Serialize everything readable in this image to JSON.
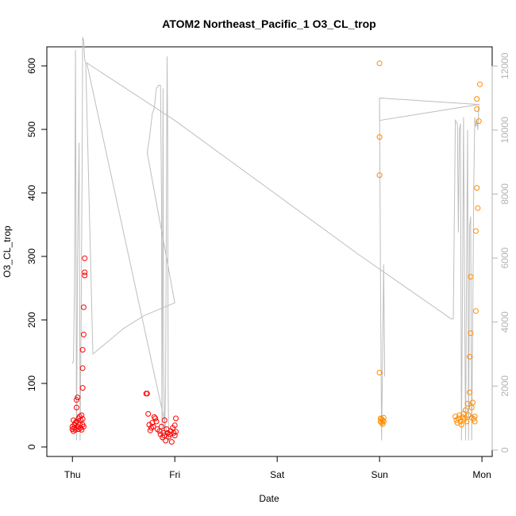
{
  "chart_data": {
    "type": "scatter",
    "title": "ATOM2 Northeast_Pacific_1 O3_CL_trop",
    "xlabel": "Date",
    "ylabel": "O3_CL_trop",
    "x_ticks": [
      "Thu",
      "Fri",
      "Sat",
      "Sun",
      "Mon"
    ],
    "x_tick_values": [
      0,
      1,
      2,
      3,
      4
    ],
    "xlim": [
      -0.25,
      4.1
    ],
    "ylim": [
      -15,
      630
    ],
    "y_ticks": [
      0,
      100,
      200,
      300,
      400,
      500,
      600
    ],
    "y2_ticks": [
      0,
      2000,
      4000,
      6000,
      8000,
      10000,
      12000
    ],
    "y2lim": [
      -200,
      12600
    ],
    "colors": {
      "series1": "#ff0000",
      "series2": "#ff8c00",
      "altitude": "#bebebe",
      "axis": "#000000",
      "axis_right": "#b3b3b3"
    },
    "series": [
      {
        "day_group": "Thu-Fri",
        "color": "#ff0000",
        "points": [
          [
            0.0,
            28
          ],
          [
            0.0,
            32
          ],
          [
            0.01,
            42
          ],
          [
            0.01,
            25
          ],
          [
            0.02,
            35
          ],
          [
            0.02,
            30
          ],
          [
            0.03,
            38
          ],
          [
            0.03,
            27
          ],
          [
            0.04,
            62
          ],
          [
            0.04,
            40
          ],
          [
            0.04,
            74
          ],
          [
            0.05,
            78
          ],
          [
            0.05,
            32
          ],
          [
            0.06,
            45
          ],
          [
            0.06,
            28
          ],
          [
            0.07,
            36
          ],
          [
            0.07,
            48
          ],
          [
            0.08,
            30
          ],
          [
            0.08,
            42
          ],
          [
            0.09,
            50
          ],
          [
            0.09,
            27
          ],
          [
            0.1,
            35
          ],
          [
            0.1,
            44
          ],
          [
            0.1,
            93
          ],
          [
            0.1,
            124
          ],
          [
            0.1,
            153
          ],
          [
            0.11,
            177
          ],
          [
            0.11,
            220
          ],
          [
            0.12,
            270
          ],
          [
            0.12,
            275
          ],
          [
            0.12,
            297
          ],
          [
            0.11,
            32
          ],
          [
            0.72,
            84
          ],
          [
            0.73,
            84
          ],
          [
            0.74,
            52
          ],
          [
            0.75,
            35
          ],
          [
            0.76,
            26
          ],
          [
            0.77,
            30
          ],
          [
            0.78,
            38
          ],
          [
            0.79,
            32
          ],
          [
            0.8,
            47
          ],
          [
            0.81,
            45
          ],
          [
            0.82,
            40
          ],
          [
            0.83,
            28
          ],
          [
            0.85,
            25
          ],
          [
            0.86,
            20
          ],
          [
            0.87,
            32
          ],
          [
            0.88,
            15
          ],
          [
            0.89,
            22
          ],
          [
            0.9,
            18
          ],
          [
            0.9,
            42
          ],
          [
            0.91,
            10
          ],
          [
            0.92,
            28
          ],
          [
            0.93,
            22
          ],
          [
            0.94,
            16
          ],
          [
            0.95,
            20
          ],
          [
            0.96,
            25
          ],
          [
            0.97,
            8
          ],
          [
            0.98,
            30
          ],
          [
            0.99,
            22
          ],
          [
            1.0,
            18
          ],
          [
            1.0,
            34
          ],
          [
            1.01,
            45
          ],
          [
            1.01,
            24
          ]
        ]
      },
      {
        "day_group": "Sun-Mon",
        "color": "#ff8c00",
        "points": [
          [
            3.0,
            604
          ],
          [
            3.0,
            488
          ],
          [
            3.0,
            428
          ],
          [
            3.0,
            117
          ],
          [
            3.01,
            45
          ],
          [
            3.01,
            40
          ],
          [
            3.02,
            38
          ],
          [
            3.02,
            44
          ],
          [
            3.03,
            42
          ],
          [
            3.03,
            36
          ],
          [
            3.04,
            46
          ],
          [
            3.04,
            40
          ],
          [
            3.74,
            48
          ],
          [
            3.75,
            42
          ],
          [
            3.76,
            38
          ],
          [
            3.77,
            45
          ],
          [
            3.78,
            50
          ],
          [
            3.79,
            40
          ],
          [
            3.8,
            35
          ],
          [
            3.81,
            47
          ],
          [
            3.82,
            52
          ],
          [
            3.83,
            44
          ],
          [
            3.84,
            58
          ],
          [
            3.85,
            40
          ],
          [
            3.86,
            68
          ],
          [
            3.87,
            50
          ],
          [
            3.88,
            86
          ],
          [
            3.88,
            142
          ],
          [
            3.89,
            179
          ],
          [
            3.89,
            268
          ],
          [
            3.9,
            46
          ],
          [
            3.9,
            62
          ],
          [
            3.91,
            70
          ],
          [
            3.92,
            44
          ],
          [
            3.93,
            48
          ],
          [
            3.94,
            214
          ],
          [
            3.94,
            340
          ],
          [
            3.95,
            408
          ],
          [
            3.95,
            532
          ],
          [
            3.95,
            548
          ],
          [
            3.96,
            376
          ],
          [
            3.97,
            513
          ],
          [
            3.98,
            571
          ],
          [
            3.93,
            40
          ]
        ]
      }
    ],
    "altitude_line": [
      [
        0.0,
        2700
      ],
      [
        0.01,
        2800
      ],
      [
        0.02,
        5000
      ],
      [
        0.025,
        9000
      ],
      [
        0.03,
        12500
      ],
      [
        0.035,
        6000
      ],
      [
        0.04,
        300
      ],
      [
        0.045,
        3000
      ],
      [
        0.05,
        6000
      ],
      [
        0.06,
        8500
      ],
      [
        0.065,
        9600
      ],
      [
        0.07,
        5000
      ],
      [
        0.075,
        300
      ],
      [
        0.085,
        4000
      ],
      [
        0.095,
        9000
      ],
      [
        0.1,
        12900
      ],
      [
        0.11,
        12800
      ],
      [
        0.12,
        12200
      ],
      [
        0.13,
        12100
      ],
      [
        0.13,
        12100
      ],
      [
        0.2,
        3000
      ],
      [
        0.35,
        3400
      ],
      [
        0.5,
        3800
      ],
      [
        0.7,
        4200
      ],
      [
        1.0,
        4600
      ],
      [
        0.73,
        9300
      ],
      [
        0.75,
        9700
      ],
      [
        0.78,
        10500
      ],
      [
        0.8,
        10700
      ],
      [
        0.82,
        11300
      ],
      [
        0.84,
        11400
      ],
      [
        0.86,
        11400
      ],
      [
        0.87,
        8000
      ],
      [
        0.875,
        300
      ],
      [
        0.88,
        5000
      ],
      [
        0.885,
        11300
      ],
      [
        0.89,
        3000
      ],
      [
        0.9,
        300
      ],
      [
        0.91,
        2000
      ],
      [
        0.92,
        9000
      ],
      [
        0.925,
        12300
      ],
      [
        0.93,
        10000
      ],
      [
        0.935,
        2000
      ],
      [
        0.94,
        300
      ],
      [
        0.14,
        12100
      ],
      [
        1.0,
        10300
      ],
      [
        1.9,
        8200
      ],
      [
        2.8,
        6100
      ],
      [
        3.7,
        4100
      ],
      [
        3.72,
        4100
      ],
      [
        3.74,
        10300
      ],
      [
        3.76,
        10200
      ],
      [
        3.77,
        6800
      ],
      [
        3.78,
        10000
      ],
      [
        3.79,
        10200
      ],
      [
        3.8,
        300
      ],
      [
        3.81,
        5000
      ],
      [
        3.82,
        10400
      ],
      [
        3.83,
        5000
      ],
      [
        3.84,
        300
      ],
      [
        3.85,
        6000
      ],
      [
        3.86,
        10000
      ],
      [
        3.87,
        300
      ],
      [
        3.88,
        7000
      ],
      [
        3.89,
        7300
      ],
      [
        3.9,
        300
      ],
      [
        3.91,
        4000
      ],
      [
        3.92,
        8300
      ],
      [
        3.93,
        10400
      ],
      [
        3.94,
        10100
      ],
      [
        3.95,
        10300
      ],
      [
        3.96,
        10000
      ],
      [
        3.97,
        10800
      ],
      [
        3.0,
        10300
      ],
      [
        3.0,
        11000
      ],
      [
        3.97,
        10800
      ],
      [
        3.0,
        11000
      ],
      [
        3.01,
        5000
      ],
      [
        3.02,
        300
      ],
      [
        3.03,
        3000
      ],
      [
        3.04,
        5800
      ],
      [
        3.05,
        2300
      ]
    ]
  }
}
